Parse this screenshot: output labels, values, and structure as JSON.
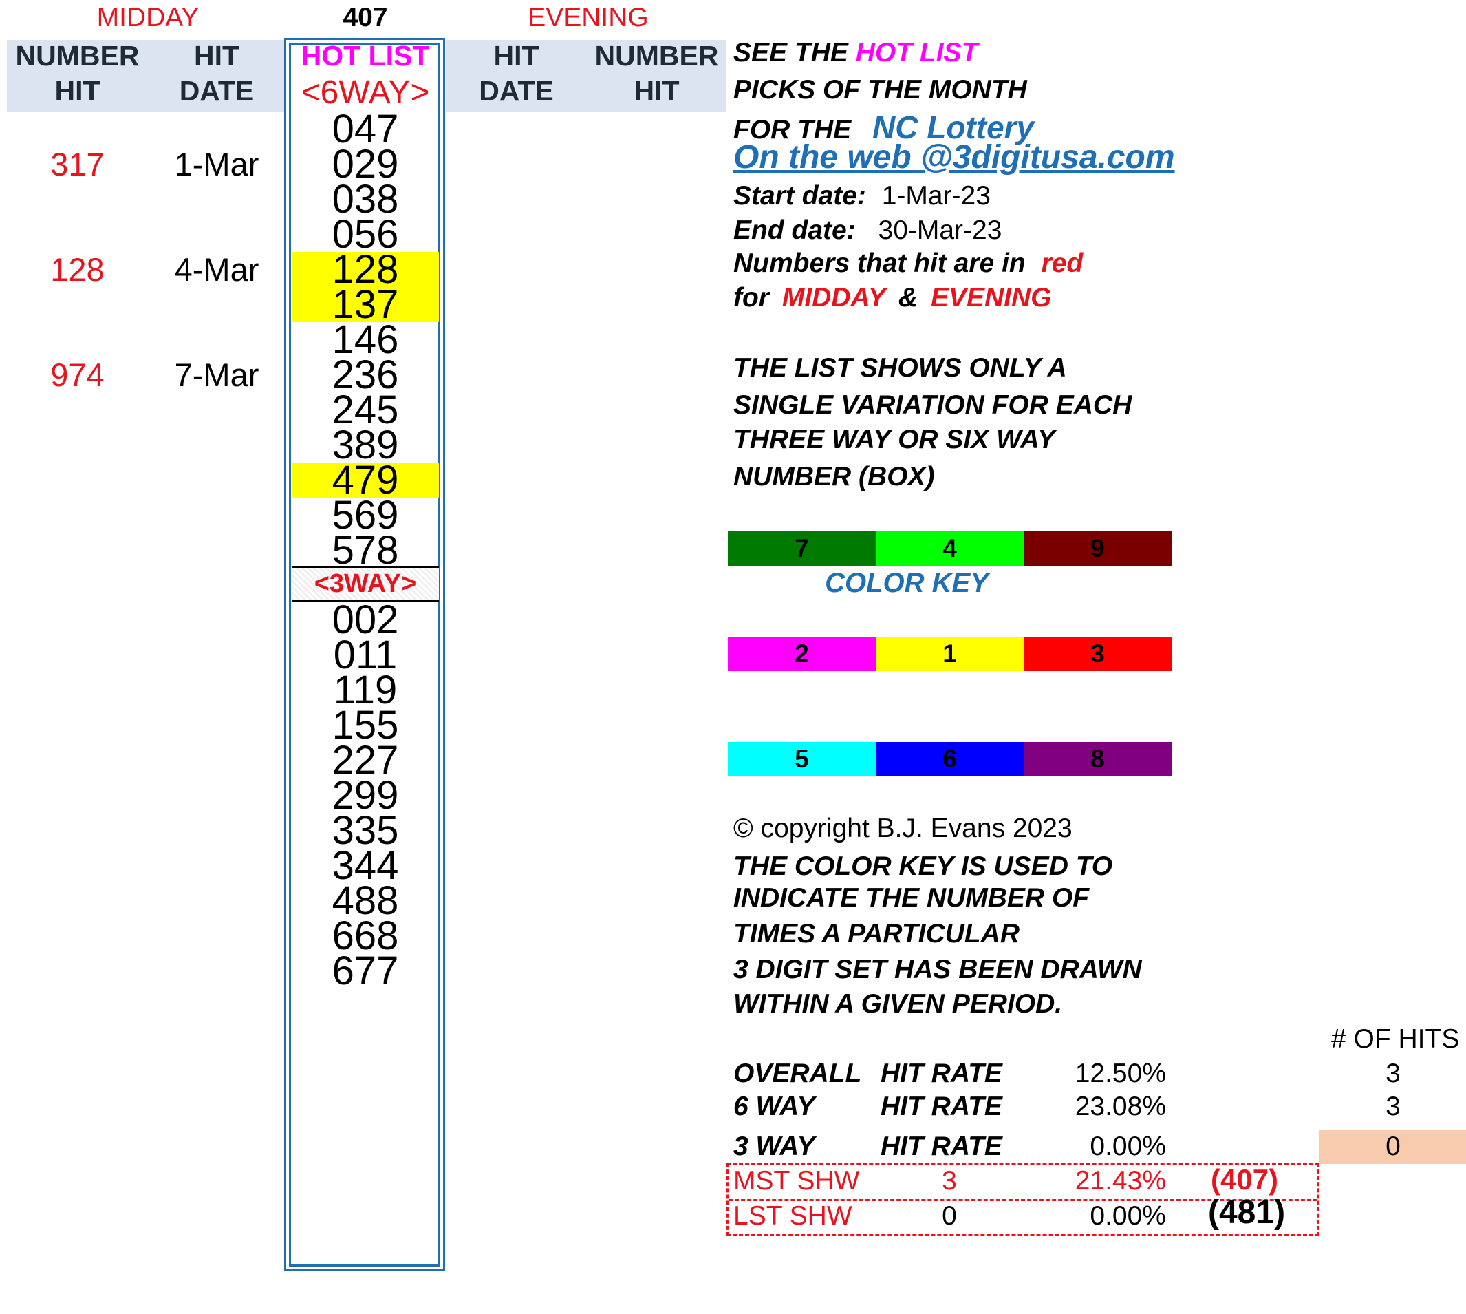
{
  "header": {
    "midday_label": "MIDDAY",
    "center_number": "407",
    "evening_label": "EVENING",
    "left_col1": [
      "NUMBER",
      "HIT"
    ],
    "left_col2": [
      "HIT",
      "DATE"
    ],
    "hot_list": "HOT LIST",
    "six_way": "<6WAY>",
    "right_col1": [
      "HIT",
      "DATE"
    ],
    "right_col2": [
      "NUMBER",
      "HIT"
    ]
  },
  "six_way_numbers": [
    "047",
    "029",
    "038",
    "056",
    "128",
    "137",
    "146",
    "236",
    "245",
    "389",
    "479",
    "569",
    "578"
  ],
  "three_way_label": "<3WAY>",
  "three_way_numbers": [
    "002",
    "011",
    "119",
    "155",
    "227",
    "299",
    "335",
    "344",
    "488",
    "668",
    "677"
  ],
  "midday_hits": [
    {
      "number": "317",
      "date": "1-Mar"
    },
    {
      "number": "128",
      "date": "4-Mar"
    },
    {
      "number": "974",
      "date": "7-Mar"
    }
  ],
  "info": {
    "see_the": "SEE THE",
    "hot_list": "HOT LIST",
    "picks": "PICKS OF THE MONTH",
    "for_the": "FOR THE",
    "lottery": "NC Lottery",
    "web": "On the web @3digitusa.com",
    "start_label": "Start date:",
    "start_value": "1-Mar-23",
    "end_label": "End date:",
    "end_value": "30-Mar-23",
    "red_note": "Numbers that hit are in",
    "red_word": "red",
    "for": "for",
    "midday": "MIDDAY",
    "amp": "&",
    "evening": "EVENING",
    "list_note": [
      "THE LIST SHOWS ONLY A",
      "SINGLE VARIATION FOR EACH",
      "THREE WAY OR SIX WAY",
      "NUMBER (BOX)"
    ]
  },
  "color_key": {
    "label": "COLOR KEY",
    "rows": [
      [
        {
          "n": "7",
          "color": "#007a00"
        },
        {
          "n": "4",
          "color": "#00ff00"
        },
        {
          "n": "9",
          "color": "#7a0000"
        }
      ],
      [
        {
          "n": "2",
          "color": "#ff00ff"
        },
        {
          "n": "1",
          "color": "#ffff00"
        },
        {
          "n": "3",
          "color": "#ff0000"
        }
      ],
      [
        {
          "n": "5",
          "color": "#00ffff"
        },
        {
          "n": "6",
          "color": "#0000ff"
        },
        {
          "n": "8",
          "color": "#800080"
        }
      ]
    ]
  },
  "copyright": "© copyright B.J. Evans 2023",
  "color_note": [
    "THE COLOR KEY IS USED TO",
    "INDICATE THE NUMBER OF",
    "TIMES A PARTICULAR",
    "3 DIGIT SET HAS BEEN DRAWN",
    "WITHIN A GIVEN PERIOD."
  ],
  "stats": {
    "hits_header": "# OF HITS",
    "rows": [
      {
        "label": "OVERALL",
        "rate_label": "HIT RATE",
        "pct": "12.50%",
        "hits": "3"
      },
      {
        "label": "6 WAY",
        "rate_label": "HIT RATE",
        "pct": "23.08%",
        "hits": "3"
      },
      {
        "label": "3 WAY",
        "rate_label": "HIT RATE",
        "pct": "0.00%",
        "hits": "0"
      }
    ],
    "most": {
      "label": "MST SHW",
      "count": "3",
      "pct": "21.43%",
      "num": "(407)"
    },
    "least": {
      "label": "LST SHW",
      "count": "0",
      "pct": "0.00%",
      "num": "(481)"
    }
  }
}
